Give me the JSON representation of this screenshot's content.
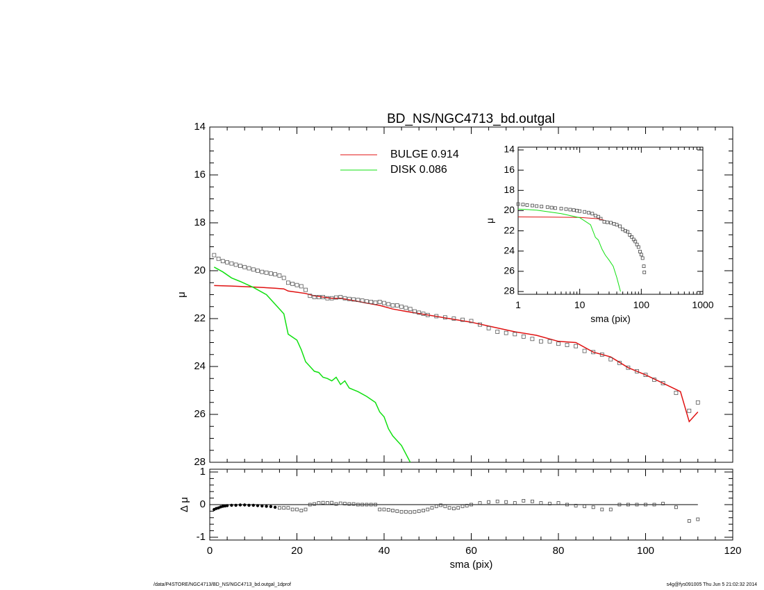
{
  "footer": {
    "path": "/data/P4STORE/NGC4713/BD_NS/NGC4713_bd.outgal_1dprof",
    "stamp": "s4g@fys091005  Thu Jun  5 21:02:32 2014"
  },
  "colors": {
    "bulge": "#e01010",
    "disk": "#10e010",
    "data": "#555555",
    "axis": "#000000"
  },
  "chart_data": [
    {
      "type": "line",
      "panel": "main-profile",
      "title": "BD_NS/NGC4713_bd.outgal",
      "xlabel": "",
      "ylabel": "μ",
      "xlim": [
        0,
        120
      ],
      "ylim": [
        28,
        14
      ],
      "y_inverted": true,
      "x_ticks": [
        0,
        20,
        40,
        60,
        80,
        100,
        120
      ],
      "y_ticks": [
        14,
        16,
        18,
        20,
        22,
        24,
        26,
        28
      ],
      "y_tick_labels": [
        "14",
        "16",
        "18",
        "20",
        "22",
        "24",
        "26",
        "28"
      ],
      "legend_position": "top-center",
      "series": [
        {
          "name": "BULGE  0.914",
          "color": "#e01010",
          "style": "line",
          "x": [
            1,
            5,
            10,
            15,
            17,
            18,
            20,
            22,
            24,
            26,
            28,
            30,
            33,
            36,
            39,
            42,
            45,
            50,
            55,
            60,
            65,
            70,
            75,
            80,
            84,
            88,
            92,
            96,
            100,
            104,
            108,
            110,
            112
          ],
          "y": [
            20.62,
            20.64,
            20.68,
            20.73,
            20.76,
            20.85,
            20.9,
            20.95,
            21.05,
            21.1,
            21.15,
            21.15,
            21.25,
            21.35,
            21.45,
            21.6,
            21.7,
            21.85,
            22.0,
            22.15,
            22.35,
            22.55,
            22.7,
            22.95,
            23.0,
            23.4,
            23.6,
            24.05,
            24.35,
            24.7,
            25.05,
            26.3,
            25.9
          ]
        },
        {
          "name": "DISK  0.086",
          "color": "#10e010",
          "style": "line",
          "x": [
            1,
            3,
            5,
            7,
            10,
            13,
            15,
            17,
            18,
            20,
            21,
            22,
            23,
            24,
            25,
            26,
            27,
            28,
            29,
            30,
            31,
            32,
            34,
            36,
            38,
            39,
            40,
            41,
            42,
            44,
            46
          ],
          "y": [
            19.85,
            20.05,
            20.3,
            20.45,
            20.7,
            21.0,
            21.4,
            21.8,
            22.65,
            22.9,
            23.3,
            23.8,
            24.0,
            24.2,
            24.25,
            24.45,
            24.5,
            24.6,
            24.45,
            24.75,
            24.6,
            24.9,
            25.05,
            25.25,
            25.5,
            25.9,
            26.1,
            26.6,
            26.9,
            27.3,
            28.0
          ]
        },
        {
          "name": "",
          "color": "#555555",
          "style": "square-markers",
          "x": [
            1,
            2,
            3,
            4,
            5,
            6,
            7,
            8,
            9,
            10,
            11,
            12,
            13,
            14,
            15,
            16,
            17,
            18,
            19,
            20,
            21,
            22,
            23,
            24,
            25,
            26,
            27,
            28,
            29,
            30,
            31,
            32,
            33,
            34,
            35,
            36,
            37,
            38,
            39,
            40,
            41,
            42,
            43,
            44,
            45,
            46,
            47,
            48,
            49,
            50,
            52,
            54,
            56,
            58,
            60,
            62,
            64,
            66,
            68,
            70,
            72,
            74,
            76,
            78,
            80,
            82,
            84,
            86,
            88,
            90,
            92,
            94,
            96,
            98,
            100,
            102,
            104,
            107,
            110,
            112
          ],
          "y": [
            19.35,
            19.5,
            19.6,
            19.65,
            19.7,
            19.75,
            19.8,
            19.85,
            19.9,
            19.95,
            20.0,
            20.05,
            20.08,
            20.12,
            20.15,
            20.2,
            20.3,
            20.5,
            20.55,
            20.6,
            20.65,
            20.8,
            21.05,
            21.1,
            21.1,
            21.1,
            21.15,
            21.15,
            21.12,
            21.1,
            21.15,
            21.18,
            21.2,
            21.22,
            21.25,
            21.28,
            21.3,
            21.33,
            21.3,
            21.35,
            21.4,
            21.45,
            21.45,
            21.5,
            21.55,
            21.6,
            21.7,
            21.75,
            21.8,
            21.85,
            21.9,
            21.95,
            22.0,
            22.05,
            22.1,
            22.25,
            22.4,
            22.55,
            22.6,
            22.65,
            22.75,
            22.85,
            22.95,
            22.95,
            23.05,
            23.1,
            23.15,
            23.35,
            23.4,
            23.5,
            23.7,
            23.85,
            24.05,
            24.2,
            24.35,
            24.55,
            24.7,
            25.1,
            25.85,
            25.5
          ]
        }
      ]
    },
    {
      "type": "scatter",
      "panel": "residual",
      "title": "",
      "xlabel": "sma (pix)",
      "ylabel": "Δ μ",
      "xlim": [
        0,
        120
      ],
      "ylim": [
        -1,
        1
      ],
      "x_ticks": [
        0,
        20,
        40,
        60,
        80,
        100,
        120
      ],
      "x_tick_labels": [
        "0",
        "20",
        "40",
        "60",
        "80",
        "100",
        "120"
      ],
      "y_ticks": [
        -1,
        0,
        1
      ],
      "y_tick_labels": [
        "-1",
        "0",
        "1"
      ],
      "reference_line": 0,
      "series": [
        {
          "name": "",
          "color": "#000000",
          "x": [
            1,
            1.5,
            2,
            2.5,
            3,
            3.5,
            4,
            5,
            6,
            7,
            8,
            9,
            10,
            11,
            12,
            13,
            14,
            15,
            16,
            17,
            18,
            19,
            20,
            21,
            22,
            23,
            24,
            25,
            26,
            27,
            28,
            29,
            30,
            31,
            32,
            33,
            34,
            35,
            36,
            37,
            38,
            39,
            40,
            41,
            42,
            43,
            44,
            45,
            46,
            47,
            48,
            49,
            50,
            51,
            52,
            53,
            54,
            55,
            56,
            57,
            58,
            59,
            60,
            62,
            64,
            66,
            68,
            70,
            72,
            74,
            76,
            78,
            80,
            82,
            84,
            86,
            88,
            90,
            92,
            94,
            96,
            98,
            100,
            102,
            104,
            107,
            110,
            112
          ],
          "y": [
            -0.15,
            -0.12,
            -0.1,
            -0.07,
            -0.05,
            -0.04,
            -0.03,
            -0.02,
            -0.02,
            -0.01,
            -0.01,
            -0.02,
            -0.02,
            -0.03,
            -0.04,
            -0.05,
            -0.06,
            -0.08,
            -0.1,
            -0.1,
            -0.1,
            -0.15,
            -0.15,
            -0.18,
            -0.15,
            0.0,
            0.02,
            0.05,
            0.06,
            0.05,
            0.06,
            0.02,
            0.04,
            0.03,
            0.02,
            0.02,
            0.0,
            0.0,
            0.0,
            0.0,
            0.0,
            -0.15,
            -0.15,
            -0.16,
            -0.18,
            -0.2,
            -0.22,
            -0.22,
            -0.23,
            -0.22,
            -0.2,
            -0.18,
            -0.15,
            -0.1,
            -0.05,
            -0.02,
            -0.05,
            -0.1,
            -0.12,
            -0.1,
            -0.05,
            -0.03,
            0.0,
            0.05,
            0.08,
            0.1,
            0.08,
            0.05,
            0.12,
            0.1,
            0.05,
            0.03,
            0.05,
            0.0,
            -0.03,
            -0.05,
            -0.08,
            -0.15,
            -0.15,
            0.0,
            0.0,
            0.0,
            0.0,
            0.0,
            0.03,
            -0.08,
            -0.5,
            -0.45
          ]
        }
      ]
    },
    {
      "type": "line",
      "panel": "inset-log",
      "title": "",
      "xlabel": "sma (pix)",
      "ylabel": "μ",
      "xscale": "log",
      "xlim": [
        1,
        1000
      ],
      "ylim": [
        28,
        14
      ],
      "y_inverted": true,
      "x_ticks": [
        1,
        10,
        100,
        1000
      ],
      "x_tick_labels": [
        "1",
        "10",
        "100",
        "1000"
      ],
      "y_ticks": [
        14,
        16,
        18,
        20,
        22,
        24,
        26,
        28
      ],
      "y_tick_labels": [
        "14",
        "16",
        "18",
        "20",
        "22",
        "24",
        "26",
        "28"
      ],
      "series": [
        {
          "name": "",
          "color": "#e01010",
          "style": "line",
          "x": [
            1,
            3,
            10,
            20,
            25
          ],
          "y": [
            20.62,
            20.64,
            20.68,
            20.8,
            20.95
          ]
        },
        {
          "name": "",
          "color": "#10e010",
          "style": "line",
          "x": [
            1,
            2,
            5,
            10,
            15,
            18,
            20,
            23,
            26,
            30,
            35,
            40,
            46
          ],
          "y": [
            19.85,
            19.95,
            20.3,
            20.7,
            21.4,
            22.65,
            22.9,
            23.8,
            24.4,
            24.9,
            25.5,
            26.6,
            28.0
          ]
        },
        {
          "name": "",
          "color": "#444444",
          "style": "square-markers",
          "x": [
            1,
            1.2,
            1.4,
            1.7,
            2,
            2.4,
            3,
            3.5,
            4,
            5,
            6,
            7,
            8,
            9,
            10,
            12,
            14,
            16,
            18,
            20,
            22,
            25,
            28,
            32,
            36,
            40,
            45,
            50,
            55,
            60,
            65,
            70,
            75,
            80,
            85,
            90,
            95,
            100,
            105,
            110,
            112
          ],
          "y": [
            19.35,
            19.4,
            19.45,
            19.5,
            19.55,
            19.6,
            19.65,
            19.7,
            19.75,
            19.8,
            19.85,
            19.9,
            19.95,
            20.0,
            20.05,
            20.12,
            20.2,
            20.3,
            20.5,
            20.6,
            20.8,
            21.1,
            21.15,
            21.2,
            21.3,
            21.4,
            21.55,
            21.85,
            22.0,
            22.1,
            22.4,
            22.6,
            22.85,
            23.05,
            23.35,
            23.6,
            24.05,
            24.35,
            24.7,
            25.5,
            26.1
          ]
        }
      ]
    }
  ]
}
